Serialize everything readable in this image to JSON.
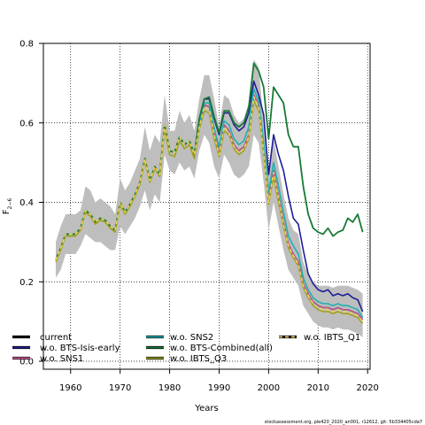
{
  "chart_data": {
    "type": "line",
    "xlabel": "Years",
    "ylabel": "F",
    "ylabel_sub": "2−6",
    "xlim": [
      1954.5,
      2020.5
    ],
    "ylim": [
      -0.02,
      0.8
    ],
    "xticks": [
      1960,
      1970,
      1980,
      1990,
      2000,
      2010,
      2020
    ],
    "yticks": [
      0.0,
      0.2,
      0.4,
      0.6,
      0.8
    ],
    "ytick_labels": [
      "0.0",
      "0.2",
      "0.4",
      "0.6",
      "0.8"
    ],
    "grid": true,
    "legend_placement": "bottom",
    "footer": "stockassessment.org, ple420_2020_an001, r12612, git: 5b334405cda7",
    "band": {
      "color": "#bebebe",
      "x": [
        1957,
        1958,
        1959,
        1960,
        1961,
        1962,
        1963,
        1964,
        1965,
        1966,
        1967,
        1968,
        1969,
        1970,
        1971,
        1972,
        1973,
        1974,
        1975,
        1976,
        1977,
        1978,
        1979,
        1980,
        1981,
        1982,
        1983,
        1984,
        1985,
        1986,
        1987,
        1988,
        1989,
        1990,
        1991,
        1992,
        1993,
        1994,
        1995,
        1996,
        1997,
        1998,
        1999,
        2000,
        2001,
        2002,
        2003,
        2004,
        2005,
        2006,
        2007,
        2008,
        2009,
        2010,
        2011,
        2012,
        2013,
        2014,
        2015,
        2016,
        2017,
        2018,
        2019
      ],
      "lower": [
        0.21,
        0.23,
        0.27,
        0.27,
        0.27,
        0.29,
        0.32,
        0.31,
        0.3,
        0.3,
        0.29,
        0.28,
        0.28,
        0.34,
        0.32,
        0.34,
        0.36,
        0.39,
        0.43,
        0.38,
        0.42,
        0.4,
        0.52,
        0.48,
        0.47,
        0.5,
        0.48,
        0.49,
        0.46,
        0.53,
        0.57,
        0.55,
        0.49,
        0.46,
        0.52,
        0.5,
        0.47,
        0.46,
        0.47,
        0.49,
        0.57,
        0.55,
        0.45,
        0.33,
        0.4,
        0.34,
        0.28,
        0.23,
        0.21,
        0.19,
        0.14,
        0.12,
        0.1,
        0.09,
        0.085,
        0.085,
        0.08,
        0.085,
        0.08,
        0.08,
        0.075,
        0.07,
        0.06
      ],
      "upper": [
        0.3,
        0.34,
        0.37,
        0.37,
        0.37,
        0.38,
        0.44,
        0.43,
        0.4,
        0.41,
        0.4,
        0.39,
        0.37,
        0.46,
        0.43,
        0.45,
        0.48,
        0.51,
        0.59,
        0.53,
        0.57,
        0.55,
        0.67,
        0.58,
        0.58,
        0.63,
        0.6,
        0.62,
        0.58,
        0.66,
        0.72,
        0.72,
        0.66,
        0.59,
        0.67,
        0.66,
        0.62,
        0.6,
        0.61,
        0.65,
        0.76,
        0.74,
        0.6,
        0.48,
        0.56,
        0.49,
        0.42,
        0.36,
        0.33,
        0.32,
        0.25,
        0.22,
        0.2,
        0.19,
        0.19,
        0.19,
        0.185,
        0.19,
        0.19,
        0.19,
        0.185,
        0.18,
        0.17
      ]
    },
    "series": [
      {
        "name": "current",
        "color": "#000000",
        "width": 1.4,
        "dash": "",
        "x": [
          1957,
          1958,
          1959,
          1960,
          1961,
          1962,
          1963,
          1964,
          1965,
          1966,
          1967,
          1968,
          1969,
          1970,
          1971,
          1972,
          1973,
          1974,
          1975,
          1976,
          1977,
          1978,
          1979,
          1980,
          1981,
          1982,
          1983,
          1984,
          1985,
          1986,
          1987,
          1988,
          1989,
          1990,
          1991,
          1992,
          1993,
          1994,
          1995,
          1996,
          1997,
          1998,
          1999,
          2000,
          2001,
          2002,
          2003,
          2004,
          2005,
          2006,
          2007,
          2008,
          2009,
          2010,
          2011,
          2012,
          2013,
          2014,
          2015,
          2016,
          2017,
          2018,
          2019
        ],
        "y": [
          0.255,
          0.285,
          0.32,
          0.32,
          0.32,
          0.335,
          0.38,
          0.37,
          0.35,
          0.36,
          0.355,
          0.34,
          0.33,
          0.4,
          0.375,
          0.395,
          0.42,
          0.45,
          0.51,
          0.455,
          0.49,
          0.47,
          0.595,
          0.53,
          0.525,
          0.565,
          0.545,
          0.555,
          0.52,
          0.595,
          0.645,
          0.64,
          0.575,
          0.525,
          0.595,
          0.58,
          0.545,
          0.53,
          0.54,
          0.57,
          0.67,
          0.645,
          0.53,
          0.405,
          0.48,
          0.415,
          0.35,
          0.295,
          0.27,
          0.25,
          0.195,
          0.17,
          0.15,
          0.14,
          0.135,
          0.135,
          0.13,
          0.135,
          0.13,
          0.13,
          0.125,
          0.12,
          0.105
        ]
      },
      {
        "name": "w.o. BTS-Isis-early",
        "color": "#1e1e96",
        "width": 1.6,
        "dash": "",
        "x": [
          1957,
          1958,
          1959,
          1960,
          1961,
          1962,
          1963,
          1964,
          1965,
          1966,
          1967,
          1968,
          1969,
          1970,
          1971,
          1972,
          1973,
          1974,
          1975,
          1976,
          1977,
          1978,
          1979,
          1980,
          1981,
          1982,
          1983,
          1984,
          1985,
          1986,
          1987,
          1988,
          1989,
          1990,
          1991,
          1992,
          1993,
          1994,
          1995,
          1996,
          1997,
          1998,
          1999,
          2000,
          2001,
          2002,
          2003,
          2004,
          2005,
          2006,
          2007,
          2008,
          2009,
          2010,
          2011,
          2012,
          2013,
          2014,
          2015,
          2016,
          2017,
          2018,
          2019
        ],
        "y": [
          0.255,
          0.285,
          0.32,
          0.32,
          0.32,
          0.335,
          0.38,
          0.37,
          0.35,
          0.36,
          0.355,
          0.34,
          0.33,
          0.4,
          0.375,
          0.395,
          0.42,
          0.45,
          0.51,
          0.455,
          0.49,
          0.47,
          0.595,
          0.53,
          0.525,
          0.565,
          0.545,
          0.555,
          0.52,
          0.61,
          0.66,
          0.66,
          0.61,
          0.57,
          0.625,
          0.625,
          0.595,
          0.58,
          0.59,
          0.625,
          0.705,
          0.67,
          0.62,
          0.47,
          0.57,
          0.52,
          0.48,
          0.415,
          0.36,
          0.345,
          0.28,
          0.22,
          0.195,
          0.18,
          0.175,
          0.18,
          0.165,
          0.17,
          0.165,
          0.17,
          0.16,
          0.155,
          0.125
        ]
      },
      {
        "name": "w.o. SNS1",
        "color": "#d45aa0",
        "width": 1.2,
        "dash": "",
        "x": [
          1957,
          1958,
          1959,
          1960,
          1961,
          1962,
          1963,
          1964,
          1965,
          1966,
          1967,
          1968,
          1969,
          1970,
          1971,
          1972,
          1973,
          1974,
          1975,
          1976,
          1977,
          1978,
          1979,
          1980,
          1981,
          1982,
          1983,
          1984,
          1985,
          1986,
          1987,
          1988,
          1989,
          1990,
          1991,
          1992,
          1993,
          1994,
          1995,
          1996,
          1997,
          1998,
          1999,
          2000,
          2001,
          2002,
          2003,
          2004,
          2005,
          2006,
          2007,
          2008,
          2009,
          2010,
          2011,
          2012,
          2013,
          2014,
          2015,
          2016,
          2017,
          2018,
          2019
        ],
        "y": [
          0.255,
          0.285,
          0.32,
          0.32,
          0.32,
          0.335,
          0.38,
          0.37,
          0.35,
          0.36,
          0.355,
          0.34,
          0.33,
          0.4,
          0.375,
          0.395,
          0.42,
          0.45,
          0.51,
          0.455,
          0.49,
          0.47,
          0.595,
          0.53,
          0.525,
          0.565,
          0.545,
          0.555,
          0.52,
          0.595,
          0.645,
          0.64,
          0.575,
          0.525,
          0.595,
          0.58,
          0.545,
          0.53,
          0.54,
          0.57,
          0.67,
          0.645,
          0.53,
          0.405,
          0.48,
          0.415,
          0.35,
          0.295,
          0.27,
          0.25,
          0.195,
          0.17,
          0.15,
          0.14,
          0.135,
          0.135,
          0.13,
          0.135,
          0.13,
          0.13,
          0.125,
          0.12,
          0.105
        ]
      },
      {
        "name": "w.o. SNS2",
        "color": "#20b0b0",
        "width": 1.6,
        "dash": "",
        "x": [
          1957,
          1958,
          1959,
          1960,
          1961,
          1962,
          1963,
          1964,
          1965,
          1966,
          1967,
          1968,
          1969,
          1970,
          1971,
          1972,
          1973,
          1974,
          1975,
          1976,
          1977,
          1978,
          1979,
          1980,
          1981,
          1982,
          1983,
          1984,
          1985,
          1986,
          1987,
          1988,
          1989,
          1990,
          1991,
          1992,
          1993,
          1994,
          1995,
          1996,
          1997,
          1998,
          1999,
          2000,
          2001,
          2002,
          2003,
          2004,
          2005,
          2006,
          2007,
          2008,
          2009,
          2010,
          2011,
          2012,
          2013,
          2014,
          2015,
          2016,
          2017,
          2018,
          2019
        ],
        "y": [
          0.255,
          0.285,
          0.32,
          0.32,
          0.32,
          0.335,
          0.38,
          0.37,
          0.35,
          0.36,
          0.355,
          0.34,
          0.33,
          0.4,
          0.375,
          0.395,
          0.42,
          0.45,
          0.51,
          0.455,
          0.49,
          0.47,
          0.595,
          0.53,
          0.525,
          0.565,
          0.545,
          0.555,
          0.52,
          0.6,
          0.65,
          0.65,
          0.585,
          0.54,
          0.605,
          0.595,
          0.56,
          0.545,
          0.555,
          0.59,
          0.685,
          0.655,
          0.55,
          0.425,
          0.5,
          0.44,
          0.375,
          0.315,
          0.29,
          0.27,
          0.21,
          0.18,
          0.16,
          0.15,
          0.145,
          0.145,
          0.14,
          0.145,
          0.14,
          0.14,
          0.135,
          0.13,
          0.11
        ]
      },
      {
        "name": "w.o. BTS-Combined(all)",
        "color": "#177a35",
        "width": 1.8,
        "dash": "",
        "x": [
          1957,
          1958,
          1959,
          1960,
          1961,
          1962,
          1963,
          1964,
          1965,
          1966,
          1967,
          1968,
          1969,
          1970,
          1971,
          1972,
          1973,
          1974,
          1975,
          1976,
          1977,
          1978,
          1979,
          1980,
          1981,
          1982,
          1983,
          1984,
          1985,
          1986,
          1987,
          1988,
          1989,
          1990,
          1991,
          1992,
          1993,
          1994,
          1995,
          1996,
          1997,
          1998,
          1999,
          2000,
          2001,
          2002,
          2003,
          2004,
          2005,
          2006,
          2007,
          2008,
          2009,
          2010,
          2011,
          2012,
          2013,
          2014,
          2015,
          2016,
          2017,
          2018,
          2019
        ],
        "y": [
          0.255,
          0.285,
          0.32,
          0.32,
          0.32,
          0.335,
          0.38,
          0.37,
          0.35,
          0.36,
          0.355,
          0.34,
          0.33,
          0.4,
          0.375,
          0.395,
          0.42,
          0.45,
          0.51,
          0.455,
          0.49,
          0.47,
          0.595,
          0.53,
          0.525,
          0.565,
          0.545,
          0.555,
          0.52,
          0.61,
          0.66,
          0.665,
          0.615,
          0.575,
          0.63,
          0.63,
          0.6,
          0.59,
          0.6,
          0.64,
          0.75,
          0.73,
          0.69,
          0.56,
          0.69,
          0.67,
          0.65,
          0.57,
          0.54,
          0.54,
          0.44,
          0.37,
          0.335,
          0.325,
          0.32,
          0.335,
          0.315,
          0.325,
          0.33,
          0.36,
          0.35,
          0.37,
          0.325
        ]
      },
      {
        "name": "w.o. IBTS_Q3",
        "color": "#a0a020",
        "width": 1.6,
        "dash": "",
        "x": [
          1957,
          1958,
          1959,
          1960,
          1961,
          1962,
          1963,
          1964,
          1965,
          1966,
          1967,
          1968,
          1969,
          1970,
          1971,
          1972,
          1973,
          1974,
          1975,
          1976,
          1977,
          1978,
          1979,
          1980,
          1981,
          1982,
          1983,
          1984,
          1985,
          1986,
          1987,
          1988,
          1989,
          1990,
          1991,
          1992,
          1993,
          1994,
          1995,
          1996,
          1997,
          1998,
          1999,
          2000,
          2001,
          2002,
          2003,
          2004,
          2005,
          2006,
          2007,
          2008,
          2009,
          2010,
          2011,
          2012,
          2013,
          2014,
          2015,
          2016,
          2017,
          2018,
          2019
        ],
        "y": [
          0.25,
          0.28,
          0.315,
          0.315,
          0.315,
          0.33,
          0.375,
          0.365,
          0.345,
          0.355,
          0.35,
          0.335,
          0.325,
          0.395,
          0.37,
          0.39,
          0.415,
          0.445,
          0.505,
          0.45,
          0.485,
          0.465,
          0.585,
          0.52,
          0.515,
          0.555,
          0.535,
          0.545,
          0.51,
          0.585,
          0.63,
          0.625,
          0.56,
          0.515,
          0.58,
          0.57,
          0.535,
          0.52,
          0.53,
          0.56,
          0.655,
          0.63,
          0.52,
          0.395,
          0.465,
          0.4,
          0.34,
          0.285,
          0.26,
          0.24,
          0.185,
          0.16,
          0.14,
          0.13,
          0.125,
          0.125,
          0.12,
          0.125,
          0.12,
          0.12,
          0.115,
          0.11,
          0.095
        ]
      },
      {
        "name": "w.o. IBTS_Q1",
        "color": "#f0d060",
        "width": 1.6,
        "dash": "4,3",
        "x": [
          1957,
          1958,
          1959,
          1960,
          1961,
          1962,
          1963,
          1964,
          1965,
          1966,
          1967,
          1968,
          1969,
          1970,
          1971,
          1972,
          1973,
          1974,
          1975,
          1976,
          1977,
          1978,
          1979,
          1980,
          1981,
          1982,
          1983,
          1984,
          1985,
          1986,
          1987,
          1988,
          1989,
          1990,
          1991,
          1992,
          1993,
          1994,
          1995,
          1996,
          1997,
          1998,
          1999,
          2000,
          2001,
          2002,
          2003,
          2004,
          2005,
          2006,
          2007,
          2008,
          2009,
          2010,
          2011,
          2012,
          2013,
          2014,
          2015,
          2016,
          2017,
          2018,
          2019
        ],
        "y": [
          0.255,
          0.285,
          0.32,
          0.32,
          0.32,
          0.335,
          0.38,
          0.37,
          0.35,
          0.36,
          0.355,
          0.34,
          0.33,
          0.4,
          0.375,
          0.395,
          0.42,
          0.45,
          0.51,
          0.455,
          0.49,
          0.47,
          0.595,
          0.53,
          0.525,
          0.565,
          0.545,
          0.555,
          0.52,
          0.59,
          0.64,
          0.635,
          0.57,
          0.52,
          0.59,
          0.575,
          0.54,
          0.525,
          0.535,
          0.565,
          0.665,
          0.64,
          0.525,
          0.4,
          0.475,
          0.41,
          0.345,
          0.29,
          0.265,
          0.245,
          0.19,
          0.165,
          0.145,
          0.135,
          0.13,
          0.13,
          0.125,
          0.13,
          0.125,
          0.125,
          0.12,
          0.115,
          0.1
        ]
      }
    ],
    "legend": [
      {
        "label": "current",
        "color": "#000000",
        "dash": ""
      },
      {
        "label": "w.o. BTS-Isis-early",
        "color": "#1e1e96",
        "dash": ""
      },
      {
        "label": "w.o. SNS1",
        "color": "#d45aa0",
        "dash": ""
      },
      {
        "label": "w.o. SNS2",
        "color": "#20b0b0",
        "dash": ""
      },
      {
        "label": "w.o. BTS-Combined(all)",
        "color": "#177a35",
        "dash": ""
      },
      {
        "label": "w.o. IBTS_Q3",
        "color": "#a0a020",
        "dash": ""
      },
      {
        "label": "w.o. IBTS_Q1",
        "color": "#f0d060",
        "dash": "4,3"
      }
    ]
  }
}
